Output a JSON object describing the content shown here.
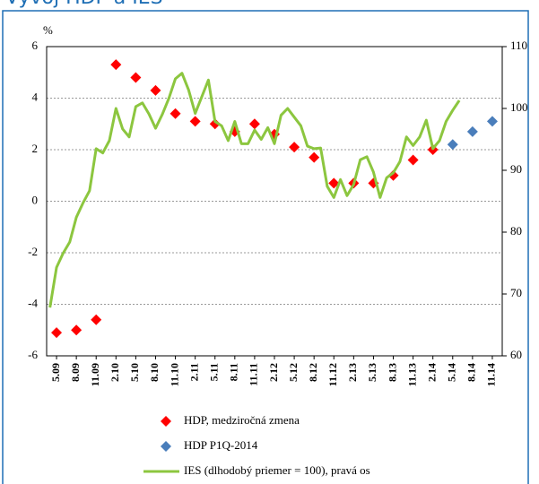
{
  "chart_data": {
    "type": "line",
    "title": "Vývoj HDP a IES",
    "y_label": "%",
    "ylim": [
      -6,
      6
    ],
    "yticks": [
      -6,
      -4,
      -2,
      0,
      2,
      4,
      6
    ],
    "y2lim": [
      60,
      110
    ],
    "y2ticks": [
      60,
      70,
      80,
      90,
      100,
      110
    ],
    "grid": true,
    "legend": "bottom",
    "categories": [
      null,
      "5.09",
      null,
      null,
      "8.09",
      null,
      null,
      "11.09",
      null,
      null,
      "2.10",
      null,
      null,
      "5.10",
      null,
      null,
      "8.10",
      null,
      null,
      "11.10",
      null,
      null,
      "2.11",
      null,
      null,
      "5.11",
      null,
      null,
      "8.11",
      null,
      null,
      "11.11",
      null,
      null,
      "2.12",
      null,
      null,
      "5.12",
      null,
      null,
      "8.12",
      null,
      null,
      "11.12",
      null,
      null,
      "2.13",
      null,
      null,
      "5.13",
      null,
      null,
      "8.13",
      null,
      null,
      "11.13",
      null,
      null,
      "2.14",
      null,
      null,
      "5.14",
      null,
      null,
      "8.14",
      null,
      null,
      "11.14",
      null
    ],
    "series": [
      {
        "name": "HDP, medziročná zmena",
        "color": "#ff0000",
        "type": "scatter",
        "marker": "diamond",
        "values": [
          null,
          -5.1,
          null,
          null,
          -5.0,
          null,
          null,
          -4.6,
          null,
          null,
          5.3,
          null,
          null,
          4.8,
          null,
          null,
          4.3,
          null,
          null,
          3.4,
          null,
          null,
          3.1,
          null,
          null,
          3.0,
          null,
          null,
          2.7,
          null,
          null,
          3.0,
          null,
          null,
          2.6,
          null,
          null,
          2.1,
          null,
          null,
          1.7,
          null,
          null,
          0.7,
          null,
          null,
          0.7,
          null,
          null,
          0.7,
          null,
          null,
          1.0,
          null,
          null,
          1.6,
          null,
          null,
          2.0,
          null,
          null,
          null,
          null,
          null,
          null,
          null,
          null,
          null,
          null
        ]
      },
      {
        "name": "HDP P1Q-2014",
        "color": "#4a7ebb",
        "type": "scatter",
        "marker": "diamond",
        "values": [
          null,
          null,
          null,
          null,
          null,
          null,
          null,
          null,
          null,
          null,
          null,
          null,
          null,
          null,
          null,
          null,
          null,
          null,
          null,
          null,
          null,
          null,
          null,
          null,
          null,
          null,
          null,
          null,
          null,
          null,
          null,
          null,
          null,
          null,
          null,
          null,
          null,
          null,
          null,
          null,
          null,
          null,
          null,
          null,
          null,
          null,
          null,
          null,
          null,
          null,
          null,
          null,
          null,
          null,
          null,
          null,
          null,
          null,
          null,
          null,
          null,
          2.2,
          null,
          null,
          2.7,
          null,
          null,
          3.1,
          null
        ]
      },
      {
        "name": "IES (dlhodobý priemer = 100), pravá os",
        "color": "#8cc63f",
        "type": "line",
        "axis": "y2",
        "values": [
          67.8,
          74.3,
          76.6,
          78.4,
          82.4,
          84.7,
          86.7,
          93.5,
          92.8,
          94.8,
          100,
          96.7,
          95.4,
          100.3,
          100.9,
          99.1,
          96.8,
          99,
          101.6,
          104.8,
          105.7,
          103,
          99.2,
          101.9,
          104.6,
          97.9,
          97.2,
          94.8,
          97.9,
          94.3,
          94.3,
          96.5,
          95,
          96.9,
          94.3,
          98.9,
          100,
          98.6,
          97.2,
          93.9,
          93.5,
          93.6,
          87.4,
          85.6,
          88.5,
          85.9,
          87.7,
          91.7,
          92.2,
          89.7,
          85.6,
          88.8,
          89.6,
          91.4,
          95.4,
          94,
          95.4,
          98.1,
          93.5,
          94.8,
          97.9,
          99.7,
          101.3,
          null,
          null,
          null,
          null,
          null,
          null
        ]
      }
    ]
  }
}
